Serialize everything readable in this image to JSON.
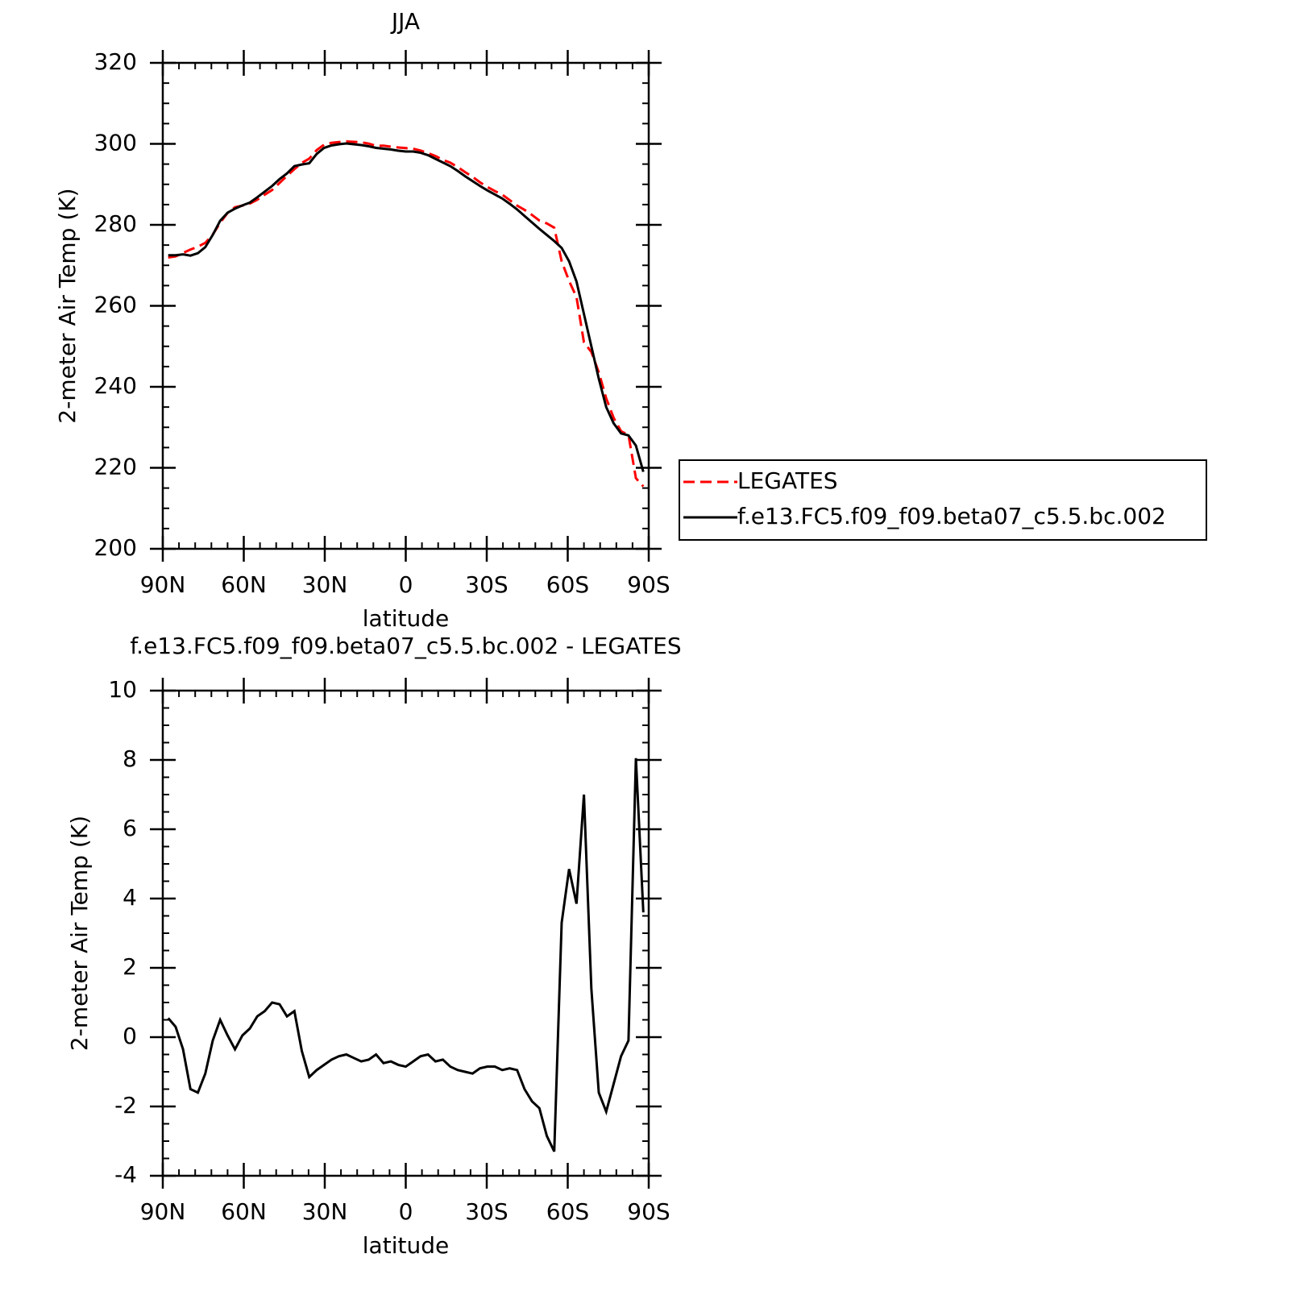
{
  "chart_data": [
    {
      "type": "line",
      "title": "JJA",
      "xlabel": "latitude",
      "ylabel": "2-meter Air Temp (K)",
      "x": [
        88,
        85.25,
        82.5,
        79.75,
        77,
        74.25,
        71.5,
        68.75,
        66,
        63.25,
        60.5,
        57.75,
        55,
        52.25,
        49.5,
        46.75,
        44,
        41.25,
        38.5,
        35.75,
        33,
        30.25,
        27.5,
        24.75,
        22,
        19.25,
        16.5,
        13.75,
        11,
        8.25,
        5.5,
        2.75,
        0,
        -2.75,
        -5.5,
        -8.25,
        -11,
        -13.75,
        -16.5,
        -19.25,
        -22,
        -24.75,
        -27.5,
        -30.25,
        -33,
        -35.75,
        -38.5,
        -41.25,
        -44,
        -46.75,
        -49.5,
        -52.25,
        -55,
        -57.75,
        -60.5,
        -63.25,
        -66,
        -68.75,
        -71.5,
        -74.25,
        -77,
        -79.75,
        -82.5,
        -85.25,
        -88
      ],
      "series": [
        {
          "name": "LEGATES",
          "color": "#ff0000",
          "line_style": "dashed",
          "values": [
            271.95,
            272.2,
            273.05,
            273.9,
            274.6,
            275.55,
            277.6,
            280.5,
            282.95,
            284.35,
            284.75,
            285.25,
            286.2,
            287.45,
            288.6,
            290.35,
            292.1,
            293.75,
            295.3,
            296.35,
            298.45,
            299.8,
            300.25,
            300.45,
            300.6,
            300.5,
            300.4,
            300.05,
            299.5,
            299.55,
            299.3,
            299.1,
            298.95,
            298.8,
            298.35,
            297.7,
            297.0,
            296.05,
            295.35,
            294.25,
            293.0,
            291.85,
            290.5,
            289.35,
            288.35,
            287.45,
            286.1,
            284.75,
            283.7,
            282.45,
            281.05,
            280.35,
            279.3,
            271.0,
            266.15,
            262.15,
            251.0,
            248.6,
            243.6,
            237.15,
            232.35,
            229.05,
            228.1,
            217.45,
            215.4
          ]
        },
        {
          "name": "f.e13.FC5.f09_f09.beta07_c5.5.bc.002",
          "color": "#000000",
          "line_style": "solid",
          "values": [
            272.5,
            272.5,
            272.7,
            272.4,
            273.0,
            274.5,
            277.5,
            281.0,
            283.0,
            284.0,
            284.8,
            285.5,
            286.8,
            288.2,
            289.6,
            291.3,
            292.7,
            294.5,
            294.9,
            295.2,
            297.5,
            299.0,
            299.6,
            299.9,
            300.1,
            299.9,
            299.7,
            299.4,
            299.0,
            298.8,
            298.6,
            298.3,
            298.1,
            298.1,
            297.8,
            297.2,
            296.3,
            295.4,
            294.5,
            293.3,
            292.0,
            290.8,
            289.6,
            288.5,
            287.5,
            286.5,
            285.2,
            283.8,
            282.2,
            280.6,
            279.0,
            277.5,
            276.0,
            274.3,
            271.0,
            266.0,
            258.0,
            250.0,
            242.0,
            235.0,
            231.0,
            228.5,
            228.0,
            225.5,
            219.0
          ]
        }
      ],
      "xlim": [
        90,
        -90
      ],
      "xticks": [
        {
          "value": 90,
          "label": "90N"
        },
        {
          "value": 60,
          "label": "60N"
        },
        {
          "value": 30,
          "label": "30N"
        },
        0,
        {
          "value": -30,
          "label": "30S"
        },
        {
          "value": -60,
          "label": "60S"
        },
        {
          "value": -90,
          "label": "90S"
        }
      ],
      "ylim": [
        200,
        320
      ],
      "yticks": [
        200,
        220,
        240,
        260,
        280,
        300,
        320
      ],
      "legend": "outside right"
    },
    {
      "type": "line",
      "title": "f.e13.FC5.f09_f09.beta07_c5.5.bc.002 - LEGATES",
      "xlabel": "latitude",
      "ylabel": "2-meter Air Temp (K)",
      "x": [
        88,
        85.25,
        82.5,
        79.75,
        77,
        74.25,
        71.5,
        68.75,
        66,
        63.25,
        60.5,
        57.75,
        55,
        52.25,
        49.5,
        46.75,
        44,
        41.25,
        38.5,
        35.75,
        33,
        30.25,
        27.5,
        24.75,
        22,
        19.25,
        16.5,
        13.75,
        11,
        8.25,
        5.5,
        2.75,
        0,
        -2.75,
        -5.5,
        -8.25,
        -11,
        -13.75,
        -16.5,
        -19.25,
        -22,
        -24.75,
        -27.5,
        -30.25,
        -33,
        -35.75,
        -38.5,
        -41.25,
        -44,
        -46.75,
        -49.5,
        -52.25,
        -55,
        -57.75,
        -60.5,
        -63.25,
        -66,
        -68.75,
        -71.5,
        -74.25,
        -77,
        -79.75,
        -82.5,
        -85.25,
        -88
      ],
      "series": [
        {
          "color": "#000000",
          "line_style": "solid",
          "values": [
            0.55,
            0.3,
            -0.35,
            -1.5,
            -1.6,
            -1.05,
            -0.1,
            0.5,
            0.05,
            -0.35,
            0.05,
            0.25,
            0.6,
            0.75,
            1.0,
            0.95,
            0.6,
            0.75,
            -0.4,
            -1.15,
            -0.95,
            -0.8,
            -0.65,
            -0.55,
            -0.5,
            -0.6,
            -0.7,
            -0.65,
            -0.5,
            -0.75,
            -0.7,
            -0.8,
            -0.85,
            -0.7,
            -0.55,
            -0.5,
            -0.7,
            -0.65,
            -0.85,
            -0.95,
            -1.0,
            -1.05,
            -0.9,
            -0.85,
            -0.85,
            -0.95,
            -0.9,
            -0.95,
            -1.5,
            -1.85,
            -2.05,
            -2.85,
            -3.3,
            3.3,
            4.85,
            3.85,
            7.0,
            1.4,
            -1.6,
            -2.15,
            -1.35,
            -0.55,
            -0.1,
            8.05,
            3.6
          ]
        }
      ],
      "xlim": [
        90,
        -90
      ],
      "xticks": [
        {
          "value": 90,
          "label": "90N"
        },
        {
          "value": 60,
          "label": "60N"
        },
        {
          "value": 30,
          "label": "30N"
        },
        0,
        {
          "value": -30,
          "label": "30S"
        },
        {
          "value": -60,
          "label": "60S"
        },
        {
          "value": -90,
          "label": "90S"
        }
      ],
      "ylim": [
        -4,
        10
      ],
      "yticks": [
        -4,
        -2,
        0,
        2,
        4,
        6,
        8,
        10
      ]
    }
  ]
}
